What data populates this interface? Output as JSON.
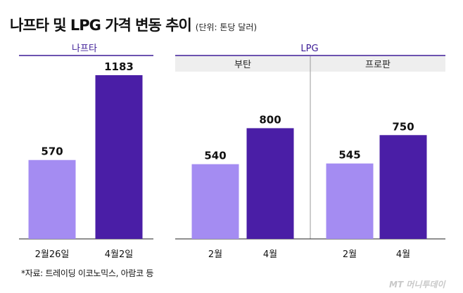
{
  "title": "나프타 및 LPG 가격 변동 추이",
  "unit": "(단위: 톤당 달러)",
  "source": "*자료: 트레이딩 이코노믹스, 아람코 등",
  "watermark": "MT 머니투데이",
  "colors": {
    "light": "#a48cf2",
    "dark": "#4a1ea6",
    "accent": "#3b1a95",
    "header_bg": "#eeeeee"
  },
  "chart_data": [
    {
      "type": "bar",
      "group": "나프타",
      "categories": [
        "2월26일",
        "4월2일"
      ],
      "values": [
        570,
        1183
      ]
    },
    {
      "type": "bar",
      "group": "LPG",
      "subgroup": "부탄",
      "categories": [
        "2월",
        "4월"
      ],
      "values": [
        540,
        800
      ]
    },
    {
      "type": "bar",
      "group": "LPG",
      "subgroup": "프로판",
      "categories": [
        "2월",
        "4월"
      ],
      "values": [
        545,
        750
      ]
    }
  ]
}
